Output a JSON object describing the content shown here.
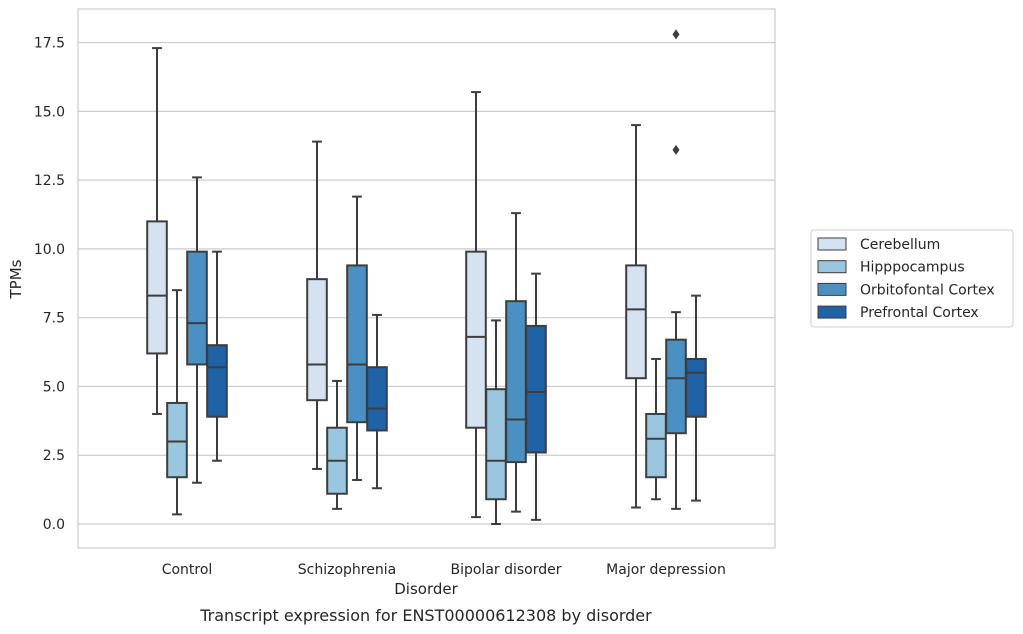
{
  "chart_data": {
    "type": "boxplot",
    "title": "Transcript expression for ENST00000612308 by disorder",
    "xlabel": "Disorder",
    "ylabel": "TPMs",
    "ylim": [
      -0.8,
      18.5
    ],
    "yticks": [
      "0.0",
      "2.5",
      "5.0",
      "7.5",
      "10.0",
      "12.5",
      "15.0",
      "17.5"
    ],
    "categories": [
      "Control",
      "Schizophrenia",
      "Bipolar disorder",
      "Major depression"
    ],
    "grid": "horizontal",
    "legend_position": "right",
    "series": [
      {
        "name": "Cerebellum",
        "color": "#d4e2f2",
        "boxes": [
          {
            "min": 4.0,
            "q1": 6.2,
            "median": 8.3,
            "q3": 11.0,
            "max": 17.3,
            "outliers": []
          },
          {
            "min": 2.0,
            "q1": 4.5,
            "median": 5.8,
            "q3": 8.9,
            "max": 13.9,
            "outliers": []
          },
          {
            "min": 0.25,
            "q1": 3.5,
            "median": 6.8,
            "q3": 9.9,
            "max": 15.7,
            "outliers": []
          },
          {
            "min": 0.6,
            "q1": 5.3,
            "median": 7.8,
            "q3": 9.4,
            "max": 14.5,
            "outliers": []
          }
        ]
      },
      {
        "name": "Hipppocampus",
        "color": "#9bc6e0",
        "boxes": [
          {
            "min": 0.35,
            "q1": 1.7,
            "median": 3.0,
            "q3": 4.4,
            "max": 8.5,
            "outliers": []
          },
          {
            "min": 0.55,
            "q1": 1.1,
            "median": 2.3,
            "q3": 3.5,
            "max": 5.2,
            "outliers": []
          },
          {
            "min": 0.0,
            "q1": 0.9,
            "median": 2.3,
            "q3": 4.9,
            "max": 7.4,
            "outliers": []
          },
          {
            "min": 0.9,
            "q1": 1.7,
            "median": 3.1,
            "q3": 4.0,
            "max": 6.0,
            "outliers": []
          }
        ]
      },
      {
        "name": "Orbitofontal Cortex",
        "color": "#4a90c2",
        "boxes": [
          {
            "min": 1.5,
            "q1": 5.8,
            "median": 7.3,
            "q3": 9.9,
            "max": 12.6,
            "outliers": []
          },
          {
            "min": 1.6,
            "q1": 3.7,
            "median": 5.8,
            "q3": 9.4,
            "max": 11.9,
            "outliers": []
          },
          {
            "min": 0.45,
            "q1": 2.25,
            "median": 3.8,
            "q3": 8.1,
            "max": 11.3,
            "outliers": []
          },
          {
            "min": 0.55,
            "q1": 3.3,
            "median": 5.3,
            "q3": 6.7,
            "max": 7.7,
            "outliers": [
              13.6,
              17.8
            ]
          }
        ]
      },
      {
        "name": "Prefrontal Cortex",
        "color": "#1f62a6",
        "boxes": [
          {
            "min": 2.3,
            "q1": 3.9,
            "median": 5.7,
            "q3": 6.5,
            "max": 9.9,
            "outliers": []
          },
          {
            "min": 1.3,
            "q1": 3.4,
            "median": 4.2,
            "q3": 5.7,
            "max": 7.6,
            "outliers": []
          },
          {
            "min": 0.15,
            "q1": 2.6,
            "median": 4.8,
            "q3": 7.2,
            "max": 9.1,
            "outliers": []
          },
          {
            "min": 0.85,
            "q1": 3.9,
            "median": 5.5,
            "q3": 6.0,
            "max": 8.3,
            "outliers": []
          }
        ]
      }
    ]
  }
}
